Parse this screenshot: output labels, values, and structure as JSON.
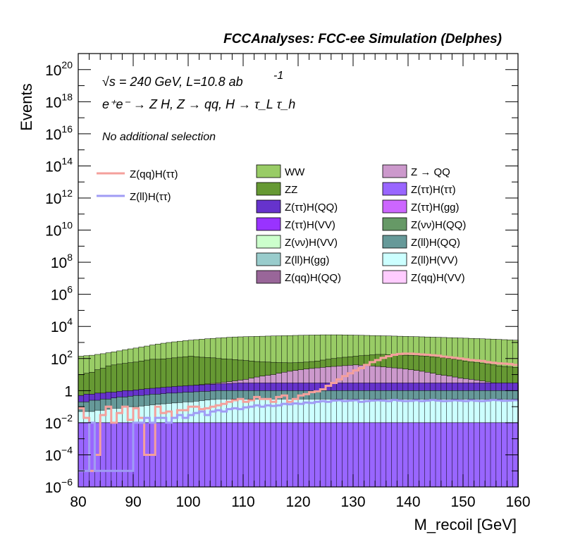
{
  "header": {
    "title": "FCCAnalyses: FCC-ee Simulation (Delphes)"
  },
  "annotations": {
    "energy_prefix": "√s = 240 GeV, L=10.8 ab",
    "energy_exp": "-1",
    "process": "e⁺e⁻ → Z H, Z → qq, H → τ_L τ_h",
    "selection": "No additional selection"
  },
  "chart_data": {
    "type": "histogram-stack",
    "xlabel": "M_recoil [GeV]",
    "ylabel": "Events",
    "log_y": true,
    "xlim": [
      80,
      160
    ],
    "ylim": [
      1e-06,
      1e+21
    ],
    "x_ticks": [
      80,
      90,
      100,
      110,
      120,
      130,
      140,
      150,
      160
    ],
    "y_ticks": [
      {
        "value": 1e-06,
        "base": "10",
        "exp": "−6"
      },
      {
        "value": 0.0001,
        "base": "10",
        "exp": "−4"
      },
      {
        "value": 0.01,
        "base": "10",
        "exp": "−2"
      },
      {
        "value": 1,
        "base": "1",
        "exp": ""
      },
      {
        "value": 100.0,
        "base": "10",
        "exp": "2"
      },
      {
        "value": 10000.0,
        "base": "10",
        "exp": "4"
      },
      {
        "value": 1000000.0,
        "base": "10",
        "exp": "6"
      },
      {
        "value": 100000000.0,
        "base": "10",
        "exp": "8"
      },
      {
        "value": 10000000000.0,
        "base": "10",
        "exp": "10"
      },
      {
        "value": 1000000000000.0,
        "base": "10",
        "exp": "12"
      },
      {
        "value": 100000000000000.0,
        "base": "10",
        "exp": "14"
      },
      {
        "value": 1e+16,
        "base": "10",
        "exp": "16"
      },
      {
        "value": 1e+18,
        "base": "10",
        "exp": "18"
      },
      {
        "value": 1e+20,
        "base": "10",
        "exp": "20"
      }
    ],
    "bins": {
      "start": 80,
      "end": 160,
      "count": 80
    },
    "legend": {
      "signals": [
        {
          "name": "Z(qq)H(ττ)",
          "color": "#f4a09c"
        },
        {
          "name": "Z(ll)H(ττ)",
          "color": "#a09cf4"
        }
      ],
      "backgrounds_left": [
        {
          "name": "WW",
          "color": "#99cc66"
        },
        {
          "name": "ZZ",
          "color": "#669933"
        },
        {
          "name": "Z(ττ)H(QQ)",
          "color": "#6633cc"
        },
        {
          "name": "Z(ττ)H(VV)",
          "color": "#9933ff"
        },
        {
          "name": "Z(νν)H(VV)",
          "color": "#ccffcc"
        },
        {
          "name": "Z(ll)H(gg)",
          "color": "#99cccc"
        },
        {
          "name": "Z(qq)H(QQ)",
          "color": "#996699"
        }
      ],
      "backgrounds_right": [
        {
          "name": "Z → QQ",
          "color": "#cc99cc"
        },
        {
          "name": "Z(ττ)H(ττ)",
          "color": "#9966ff"
        },
        {
          "name": "Z(ττ)H(gg)",
          "color": "#cc66ff"
        },
        {
          "name": "Z(νν)H(QQ)",
          "color": "#669966"
        },
        {
          "name": "Z(ll)H(QQ)",
          "color": "#669999"
        },
        {
          "name": "Z(ll)H(VV)",
          "color": "#ccffff"
        },
        {
          "name": "Z(qq)H(VV)",
          "color": "#ffccff"
        }
      ]
    },
    "stack_totals": [
      {
        "name": "WW",
        "color": "#99cc66",
        "values": [
          140,
          150,
          160,
          180,
          200,
          230,
          260,
          300,
          350,
          400,
          450,
          520,
          600,
          700,
          800,
          900,
          1000,
          1100,
          1200,
          1300,
          1400,
          1500,
          1600,
          1700,
          1800,
          1900,
          2000,
          2100,
          2200,
          2250,
          2300,
          2350,
          2400,
          2450,
          2500,
          2550,
          2600,
          2650,
          2700,
          2750,
          2800,
          2850,
          2900,
          2950,
          3000,
          3000,
          3000,
          3000,
          2950,
          2900,
          2850,
          2800,
          2750,
          2700,
          2650,
          2600,
          2550,
          2500,
          2450,
          2400,
          2350,
          2300,
          2250,
          2200,
          2150,
          2100,
          2050,
          2000,
          1950,
          1900,
          1850,
          1800,
          1750,
          1700,
          1650,
          1600,
          1550,
          1500,
          1450,
          1400
        ]
      },
      {
        "name": "ZZ",
        "color": "#669933",
        "values": [
          10,
          12,
          14,
          20,
          25,
          35,
          40,
          45,
          50,
          55,
          60,
          70,
          80,
          90,
          90,
          95,
          100,
          110,
          120,
          130,
          140,
          130,
          120,
          115,
          110,
          100,
          95,
          90,
          85,
          80,
          75,
          70,
          65,
          62,
          60,
          58,
          56,
          55,
          54,
          55,
          58,
          60,
          65,
          70,
          80,
          90,
          100,
          110,
          120,
          130,
          140,
          150,
          160,
          170,
          180,
          180,
          175,
          170,
          165,
          160,
          155,
          150,
          145,
          140,
          130,
          120,
          110,
          100,
          90,
          80,
          70,
          60,
          55,
          50,
          45,
          40,
          35,
          32,
          30,
          28
        ]
      },
      {
        "name": "Z → QQ",
        "color": "#cc99cc",
        "values": [
          0.3,
          0.3,
          0.4,
          0.5,
          0.5,
          0.6,
          0.6,
          0.7,
          0.8,
          0.8,
          0.9,
          1,
          1,
          1.1,
          1.2,
          1.3,
          1.4,
          1.5,
          1.6,
          1.8,
          2,
          2.2,
          2.4,
          2.6,
          2.8,
          3,
          3.3,
          3.6,
          4,
          4.5,
          5,
          6,
          7,
          8,
          9,
          10,
          12,
          14,
          16,
          18,
          20,
          22,
          24,
          26,
          28,
          30,
          32,
          34,
          36,
          38,
          40,
          38,
          36,
          34,
          32,
          30,
          28,
          26,
          24,
          22,
          20,
          18,
          16,
          14,
          12,
          10,
          9,
          8,
          7,
          6,
          5.5,
          5,
          4.5,
          4,
          3.5,
          3,
          2.8,
          2.6,
          2.4,
          2.2
        ]
      },
      {
        "name": "Z(ττ)H(QQ)",
        "color": "#6633cc",
        "values": [
          0.5,
          0.6,
          0.6,
          0.7,
          0.7,
          0.8,
          0.8,
          0.9,
          1,
          1,
          1.1,
          1.2,
          1.3,
          1.4,
          1.5,
          1.6,
          1.7,
          1.8,
          1.9,
          2,
          2.1,
          2.2,
          2.3,
          2.4,
          2.5,
          2.6,
          2.7,
          2.8,
          2.9,
          3,
          3,
          3,
          3,
          3,
          3,
          3,
          3,
          3,
          3,
          3,
          3,
          3,
          3,
          3,
          3,
          3,
          3,
          3,
          3,
          3,
          3,
          3,
          3,
          3,
          3,
          3,
          3,
          3,
          3,
          3,
          3,
          3,
          3,
          3,
          3,
          3,
          3,
          3,
          3,
          3,
          3,
          3,
          3,
          3,
          3,
          3,
          3,
          3,
          3,
          3
        ]
      },
      {
        "name": "Z(ll)H(QQ)",
        "color": "#669999",
        "values": [
          0.2,
          0.2,
          0.25,
          0.25,
          0.3,
          0.3,
          0.35,
          0.4,
          0.4,
          0.45,
          0.5,
          0.5,
          0.55,
          0.6,
          0.6,
          0.65,
          0.7,
          0.7,
          0.75,
          0.8,
          0.8,
          0.85,
          0.9,
          0.9,
          0.95,
          1,
          1,
          1,
          1,
          1,
          1,
          1,
          1,
          1,
          1,
          1,
          1,
          1,
          1,
          1,
          1,
          1,
          1,
          1,
          1,
          1,
          1,
          1,
          1,
          1,
          1,
          1,
          1,
          1,
          1,
          1,
          1,
          1,
          1,
          1,
          1,
          1,
          1,
          1,
          1,
          1,
          1,
          1,
          1,
          1,
          1,
          1,
          1,
          1,
          1,
          1,
          1,
          1,
          1,
          1
        ]
      },
      {
        "name": "Z(ll)H(VV)",
        "color": "#ccffff",
        "values": [
          0.05,
          0.05,
          0.05,
          0.06,
          0.06,
          0.07,
          0.08,
          0.08,
          0.09,
          0.1,
          0.1,
          0.11,
          0.12,
          0.13,
          0.14,
          0.15,
          0.16,
          0.17,
          0.18,
          0.2,
          0.2,
          0.22,
          0.24,
          0.26,
          0.28,
          0.3,
          0.3,
          0.3,
          0.3,
          0.3,
          0.3,
          0.3,
          0.3,
          0.3,
          0.3,
          0.3,
          0.3,
          0.3,
          0.3,
          0.3,
          0.3,
          0.3,
          0.3,
          0.3,
          0.3,
          0.3,
          0.3,
          0.3,
          0.3,
          0.3,
          0.3,
          0.3,
          0.3,
          0.3,
          0.3,
          0.3,
          0.3,
          0.3,
          0.3,
          0.3,
          0.3,
          0.3,
          0.3,
          0.3,
          0.3,
          0.3,
          0.3,
          0.3,
          0.3,
          0.3,
          0.3,
          0.3,
          0.3,
          0.3,
          0.3,
          0.3,
          0.3,
          0.3,
          0.3,
          0.3
        ]
      },
      {
        "name": "Z(ll)H(gg)",
        "color": "#99cccc",
        "values": [
          0.01,
          0.01,
          0.01,
          0.01,
          0.01,
          0.01,
          0.01,
          0.01,
          0.01,
          0.01,
          0.01,
          0.01,
          0.01,
          0.01,
          0.01,
          0.01,
          0.01,
          0.01,
          0.01,
          0.01,
          0.01,
          0.01,
          0.01,
          0.01,
          0.01,
          0.01,
          0.01,
          0.01,
          0.01,
          0.01,
          0.01,
          0.01,
          0.01,
          0.01,
          0.01,
          0.01,
          0.01,
          0.01,
          0.01,
          0.01,
          0.01,
          0.01,
          0.01,
          0.01,
          0.01,
          0.01,
          0.01,
          0.01,
          0.01,
          0.01,
          0.01,
          0.01,
          0.01,
          0.01,
          0.01,
          0.01,
          0.01,
          0.01,
          0.01,
          0.01,
          0.01,
          0.01,
          0.01,
          0.01,
          0.01,
          0.01,
          0.01,
          0.01,
          0.01,
          0.01,
          0.01,
          0.01,
          0.01,
          0.01,
          0.01,
          0.01,
          0.01,
          0.01,
          0.01,
          0.01
        ]
      },
      {
        "name": "Z(ττ)H(ττ)",
        "color": "#9966ff",
        "values": [
          0.01,
          0.01,
          0.01,
          0.01,
          0.01,
          0.01,
          0.01,
          0.01,
          0.01,
          0.01,
          0.01,
          0.01,
          0.01,
          0.01,
          0.01,
          0.01,
          0.01,
          0.01,
          0.01,
          0.01,
          0.01,
          0.01,
          0.01,
          0.01,
          0.01,
          0.01,
          0.01,
          0.01,
          0.01,
          0.01,
          0.01,
          0.01,
          0.01,
          0.01,
          0.01,
          0.01,
          0.01,
          0.01,
          0.01,
          0.01,
          0.01,
          0.01,
          0.01,
          0.01,
          0.01,
          0.01,
          0.01,
          0.01,
          0.01,
          0.01,
          0.01,
          0.01,
          0.01,
          0.01,
          0.01,
          0.01,
          0.01,
          0.01,
          0.01,
          0.01,
          0.01,
          0.01,
          0.01,
          0.01,
          0.01,
          0.01,
          0.01,
          0.01,
          0.01,
          0.01,
          0.01,
          0.01,
          0.01,
          0.01,
          0.01,
          0.01,
          0.01,
          0.01,
          0.01,
          0.01
        ]
      }
    ],
    "signal_Z(qq)H(tautau)": [
      0.08,
      0.02,
      1e-05,
      0.0001,
      0.03,
      0.1,
      0.01,
      0.04,
      0.1,
      0.015,
      0.08,
      0.02,
      0.0001,
      0.0001,
      0.1,
      0.04,
      0.05,
      0.02,
      0.06,
      0.06,
      0.1,
      0.1,
      0.07,
      0.08,
      0.1,
      0.12,
      0.15,
      0.2,
      0.25,
      0.3,
      0.2,
      0.25,
      0.4,
      0.3,
      0.3,
      0.2,
      0.4,
      0.5,
      0.2,
      0.3,
      0.5,
      0.6,
      0.8,
      0.9,
      1.2,
      2,
      3,
      5,
      8,
      12,
      18,
      25,
      40,
      60,
      80,
      110,
      140,
      170,
      190,
      200,
      200,
      190,
      180,
      170,
      160,
      150,
      130,
      120,
      110,
      100,
      90,
      80,
      75,
      70,
      60,
      55,
      50,
      48,
      45,
      40
    ],
    "signal_Z(ll)H(tautau)": [
      1e-05,
      1e-05,
      0.01,
      1e-05,
      1e-05,
      1e-05,
      1e-05,
      1e-05,
      1e-05,
      1e-05,
      0.01,
      0.01,
      0.02,
      0.01,
      0.02,
      0.02,
      0.01,
      0.02,
      0.03,
      0.02,
      0.03,
      0.04,
      0.05,
      0.03,
      0.05,
      0.06,
      0.05,
      0.07,
      0.08,
      0.07,
      0.09,
      0.1,
      0.12,
      0.1,
      0.12,
      0.11,
      0.12,
      0.15,
      0.14,
      0.16,
      0.15,
      0.18,
      0.17,
      0.2,
      0.22,
      0.2,
      0.24,
      0.25,
      0.22,
      0.24,
      0.25,
      0.2,
      0.22,
      0.24,
      0.25,
      0.24,
      0.22,
      0.26,
      0.24,
      0.22,
      0.23,
      0.25,
      0.22,
      0.24,
      0.26,
      0.24,
      0.22,
      0.23,
      0.25,
      0.24,
      0.22,
      0.25,
      0.23,
      0.22,
      0.24,
      0.26,
      0.25,
      0.23,
      0.24,
      0.25
    ]
  }
}
